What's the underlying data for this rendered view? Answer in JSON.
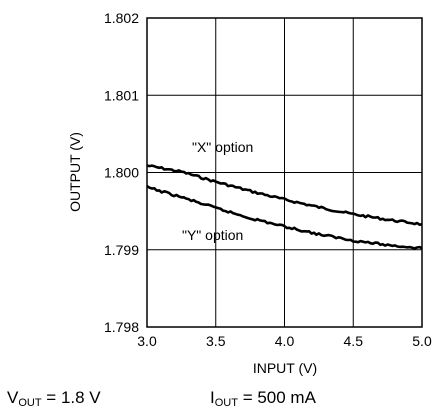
{
  "chart_data": {
    "type": "line",
    "xlabel": "INPUT (V)",
    "ylabel": "OUTPUT (V)",
    "xlim": [
      3.0,
      5.0
    ],
    "ylim": [
      1.798,
      1.802
    ],
    "xticks": [
      "3.0",
      "3.5",
      "4.0",
      "4.5",
      "5.0"
    ],
    "yticks": [
      "1.802",
      "1.801",
      "1.800",
      "1.799",
      "1.798"
    ],
    "grid": true,
    "series": [
      {
        "name": "\"X\" option",
        "x": [
          3.0,
          3.25,
          3.5,
          3.75,
          4.0,
          4.25,
          4.5,
          4.75,
          5.0
        ],
        "y": [
          1.80009,
          1.80001,
          1.79988,
          1.79976,
          1.79965,
          1.79955,
          1.79946,
          1.79939,
          1.79933
        ]
      },
      {
        "name": "\"Y\" option",
        "x": [
          3.0,
          3.25,
          3.5,
          3.75,
          4.0,
          4.25,
          4.5,
          4.75,
          5.0
        ],
        "y": [
          1.79981,
          1.79968,
          1.79954,
          1.79941,
          1.7993,
          1.7992,
          1.79912,
          1.79906,
          1.79902
        ]
      }
    ],
    "annotations": {
      "x_label": "\"X\" option",
      "y_label": "\"Y\" option"
    }
  },
  "conditions": {
    "vout_sym": "V",
    "vout_sub": "OUT",
    "vout_val": " = 1.8 V",
    "iout_sym": "I",
    "iout_sub": "OUT",
    "iout_val": " = 500 mA"
  }
}
